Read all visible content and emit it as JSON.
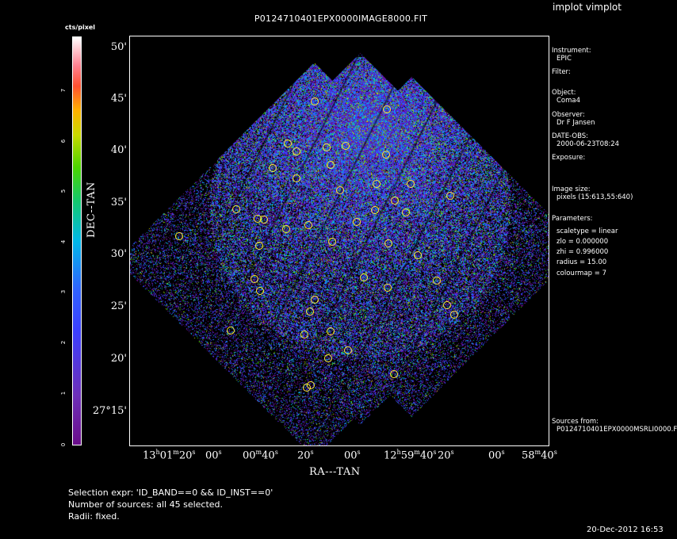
{
  "window": {
    "title": "implot vimplot"
  },
  "plot": {
    "title": "P0124710401EPX0000IMAGE8000.FIT",
    "xlabel": "RA---TAN",
    "ylabel": "DEC--TAN",
    "x_ticks": [
      {
        "h": "13",
        "m": "01",
        "s": "20"
      },
      {
        "s": "00"
      },
      {
        "m": "00",
        "s": "40"
      },
      {
        "s": "20"
      },
      {
        "s": "00"
      },
      {
        "h": "12",
        "m": "59",
        "s": "40"
      },
      {
        "s": "20"
      },
      {
        "s": "00"
      },
      {
        "m": "58",
        "s": "40"
      }
    ],
    "y_ticks": [
      "50'",
      "45'",
      "40'",
      "35'",
      "30'",
      "25'",
      "20'",
      "27°15'"
    ]
  },
  "colorbar": {
    "label": "cts/pixel",
    "ticks": [
      "0",
      "1",
      "2",
      "3",
      "4",
      "5",
      "6",
      "7"
    ],
    "colours": [
      "#6a0d8a",
      "#3b3fff",
      "#00b8e8",
      "#4bd400",
      "#c8d800",
      "#ff5030",
      "#ffffff"
    ]
  },
  "info": {
    "instrument_label": "Instrument:",
    "instrument_value": "EPIC",
    "filter_label": "Filter:",
    "object_label": "Object:",
    "object_value": "Coma4",
    "observer_label": "Observer:",
    "observer_value": "Dr F Jansen",
    "date_label": "DATE-OBS:",
    "date_value": "2000-06-23T08:24",
    "exposure_label": "Exposure:",
    "image_size_label": "Image size:",
    "image_size_value": "pixels (15:613,55:640)",
    "parameters_label": "Parameters:",
    "param_scaletype": "scaletype = linear",
    "param_zlo": "zlo = 0.000000",
    "param_zhi": "zhi = 0.996000",
    "param_radius": "radius = 15.00",
    "param_colourmap": "colourmap = 7",
    "sources_label": "Sources from:",
    "sources_value": "P0124710401EPX0000MSRLI0000.F"
  },
  "footer": {
    "selection": "Selection expr: 'ID_BAND==0 && ID_INST==0'",
    "num_sources": "Number of sources: all 45 selected.",
    "radii": "Radii: fixed.",
    "timestamp": "20-Dec-2012 16:53"
  },
  "sources": [
    [
      397,
      128
    ],
    [
      488,
      138
    ],
    [
      363,
      181
    ],
    [
      374,
      191
    ],
    [
      412,
      186
    ],
    [
      436,
      184
    ],
    [
      487,
      195
    ],
    [
      344,
      212
    ],
    [
      417,
      208
    ],
    [
      374,
      225
    ],
    [
      518,
      232
    ],
    [
      429,
      240
    ],
    [
      475,
      232
    ],
    [
      568,
      247
    ],
    [
      298,
      264
    ],
    [
      325,
      276
    ],
    [
      333,
      277
    ],
    [
      473,
      265
    ],
    [
      512,
      268
    ],
    [
      498,
      253
    ],
    [
      389,
      284
    ],
    [
      361,
      289
    ],
    [
      450,
      280
    ],
    [
      226,
      298
    ],
    [
      327,
      310
    ],
    [
      419,
      305
    ],
    [
      490,
      307
    ],
    [
      527,
      322
    ],
    [
      321,
      352
    ],
    [
      459,
      350
    ],
    [
      551,
      354
    ],
    [
      489,
      363
    ],
    [
      328,
      367
    ],
    [
      397,
      378
    ],
    [
      564,
      385
    ],
    [
      391,
      393
    ],
    [
      573,
      397
    ],
    [
      291,
      417
    ],
    [
      384,
      422
    ],
    [
      417,
      418
    ],
    [
      439,
      442
    ],
    [
      414,
      452
    ],
    [
      497,
      472
    ],
    [
      392,
      486
    ],
    [
      387,
      489
    ]
  ]
}
